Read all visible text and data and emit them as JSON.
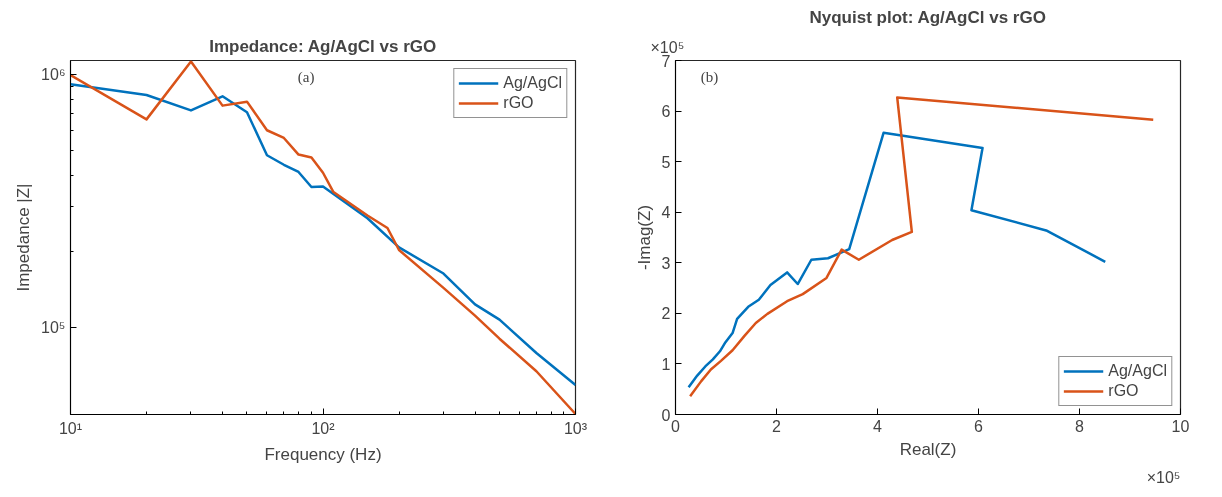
{
  "chart_data": [
    {
      "type": "line",
      "title": "Impedance: Ag/AgCl vs rGO",
      "xlabel": "Frequency (Hz)",
      "ylabel": "Impedance |Z|",
      "log": "xy",
      "grid": false,
      "legend": "top right",
      "marker": "none",
      "line_style": "solid",
      "xlim": [
        10,
        1000
      ],
      "ylim": [
        45000,
        1140000
      ],
      "xticks": [
        {
          "value": 10,
          "label": "10¹"
        },
        {
          "value": 100,
          "label": "10²"
        },
        {
          "value": 1000,
          "label": "10³"
        }
      ],
      "yticks": [
        {
          "value": 100000,
          "label": "10⁵"
        },
        {
          "value": 1000000,
          "label": "10⁶"
        }
      ],
      "annotations": [
        "(a)"
      ],
      "series": [
        {
          "name": "Ag/AgCl",
          "color": "#0072bd",
          "x": [
            10,
            20,
            30,
            40,
            50,
            60,
            70,
            80,
            90,
            100,
            150,
            200,
            300,
            400,
            500,
            700,
            1000
          ],
          "values": [
            918000,
            832000,
            723000,
            822000,
            711000,
            480000,
            440000,
            412000,
            359000,
            361000,
            270000,
            207000,
            163000,
            123000,
            107000,
            78900,
            58900
          ]
        },
        {
          "name": "rGO",
          "color": "#d95319",
          "x": [
            10,
            20,
            30,
            40,
            50,
            60,
            70,
            80,
            90,
            100,
            110,
            150,
            180,
            200,
            300,
            400,
            500,
            700,
            1000
          ],
          "values": [
            997000,
            666000,
            1130000,
            755000,
            783000,
            603000,
            562000,
            483000,
            470000,
            409000,
            343000,
            277000,
            247000,
            202000,
            143000,
            111000,
            89900,
            66800,
            45200
          ]
        }
      ]
    },
    {
      "type": "line",
      "title": "Nyquist plot: Ag/AgCl vs rGO",
      "xlabel": "Real(Z)",
      "ylabel": "-Imag(Z)",
      "grid": false,
      "legend": "bottom right",
      "marker": "none",
      "line_style": "solid",
      "xlim": [
        0,
        10
      ],
      "ylim": [
        0,
        7
      ],
      "xticks": [
        0,
        2,
        4,
        6,
        8,
        10
      ],
      "yticks": [
        0,
        1,
        2,
        3,
        4,
        5,
        6,
        7
      ],
      "annotations": [
        "(b)",
        "×10⁵",
        "×10⁵"
      ],
      "series": [
        {
          "name": "Ag/AgCl",
          "color": "#0072bd",
          "x": [
            0.26,
            0.43,
            0.59,
            0.74,
            0.88,
            0.99,
            1.13,
            1.22,
            1.44,
            1.65,
            1.88,
            2.21,
            2.42,
            2.69,
            3.02,
            3.44,
            4.12,
            6.08,
            5.86,
            7.34,
            8.51
          ],
          "values": [
            0.54,
            0.77,
            0.95,
            1.09,
            1.25,
            1.43,
            1.61,
            1.89,
            2.13,
            2.27,
            2.56,
            2.81,
            2.58,
            3.06,
            3.09,
            3.27,
            5.57,
            5.27,
            4.04,
            3.64,
            3.02
          ]
        },
        {
          "name": "rGO",
          "color": "#d95319",
          "x": [
            0.29,
            0.51,
            0.7,
            0.9,
            1.13,
            1.37,
            1.59,
            1.82,
            2.21,
            2.52,
            2.99,
            3.29,
            3.63,
            4.29,
            4.68,
            4.39,
            9.46
          ],
          "values": [
            0.36,
            0.66,
            0.89,
            1.06,
            1.27,
            1.56,
            1.81,
            1.99,
            2.24,
            2.38,
            2.7,
            3.26,
            3.06,
            3.45,
            3.61,
            6.27,
            5.83
          ]
        }
      ]
    }
  ]
}
